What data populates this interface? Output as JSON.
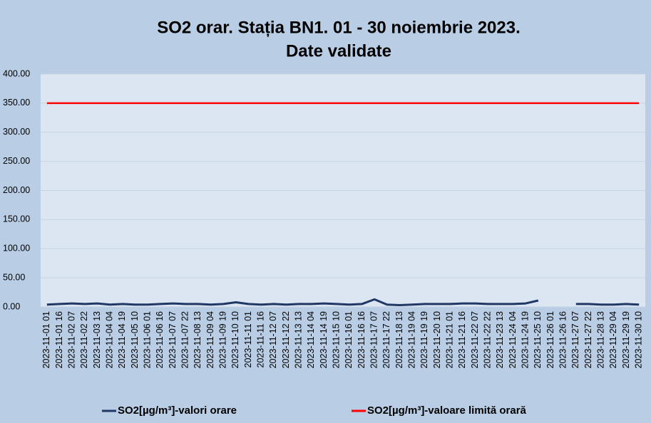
{
  "chart_data": {
    "type": "line",
    "title": "SO2 orar. Stația BN1. 01 - 30 noiembrie 2023.",
    "subtitle": "Date validate",
    "categories": [
      "2023-11-01 01",
      "2023-11-01 16",
      "2023-11-02 07",
      "2023-11-02 22",
      "2023-11-03 13",
      "2023-11-04 04",
      "2023-11-04 19",
      "2023-11-05 10",
      "2023-11-06 01",
      "2023-11-06 16",
      "2023-11-07 07",
      "2023-11-07 22",
      "2023-11-08 13",
      "2023-11-09 04",
      "2023-11-09 19",
      "2023-11-10 10",
      "2023-11-11 01",
      "2023-11-11 16",
      "2023-11-12 07",
      "2023-11-12 22",
      "2023-11-13 13",
      "2023-11-14 04",
      "2023-11-14 19",
      "2023-11-15 10",
      "2023-11-16 01",
      "2023-11-16 16",
      "2023-11-17 07",
      "2023-11-17 22",
      "2023-11-18 13",
      "2023-11-19 04",
      "2023-11-19 19",
      "2023-11-20 10",
      "2023-11-21 01",
      "2023-11-21 16",
      "2023-11-22 07",
      "2023-11-22 22",
      "2023-11-23 13",
      "2023-11-24 04",
      "2023-11-24 19",
      "2023-11-25 10",
      "2023-11-26 01",
      "2023-11-26 16",
      "2023-11-27 07",
      "2023-11-27 22",
      "2023-11-28 13",
      "2023-11-29 04",
      "2023-11-29 19",
      "2023-11-30 10"
    ],
    "series": [
      {
        "name": "SO2[µg/m³]-valori orare",
        "color": "#1f3864",
        "values": [
          4,
          5,
          6,
          5,
          6,
          4,
          5,
          4,
          4,
          5,
          6,
          5,
          5,
          4,
          5,
          8,
          5,
          4,
          5,
          4,
          5,
          5,
          6,
          5,
          4,
          5,
          13,
          4,
          3,
          4,
          5,
          5,
          5,
          6,
          6,
          5,
          5,
          5,
          6,
          11,
          null,
          null,
          5,
          5,
          4,
          4,
          5,
          4
        ]
      },
      {
        "name": "SO2[µg/m³]-valoare limită orară",
        "color": "#ff0000",
        "values": [
          350,
          350,
          350,
          350,
          350,
          350,
          350,
          350,
          350,
          350,
          350,
          350,
          350,
          350,
          350,
          350,
          350,
          350,
          350,
          350,
          350,
          350,
          350,
          350,
          350,
          350,
          350,
          350,
          350,
          350,
          350,
          350,
          350,
          350,
          350,
          350,
          350,
          350,
          350,
          350,
          350,
          350,
          350,
          350,
          350,
          350,
          350,
          350
        ]
      }
    ],
    "ylim": [
      0,
      400
    ],
    "yticks": [
      {
        "value": 0,
        "label": "0.00"
      },
      {
        "value": 50,
        "label": "50.00"
      },
      {
        "value": 100,
        "label": "100.00"
      },
      {
        "value": 150,
        "label": "150.00"
      },
      {
        "value": 200,
        "label": "200.00"
      },
      {
        "value": 250,
        "label": "250.00"
      },
      {
        "value": 300,
        "label": "300.00"
      },
      {
        "value": 350,
        "label": "350.00"
      },
      {
        "value": 400,
        "label": "400.00"
      }
    ],
    "grid": true,
    "legend": "bottom"
  }
}
